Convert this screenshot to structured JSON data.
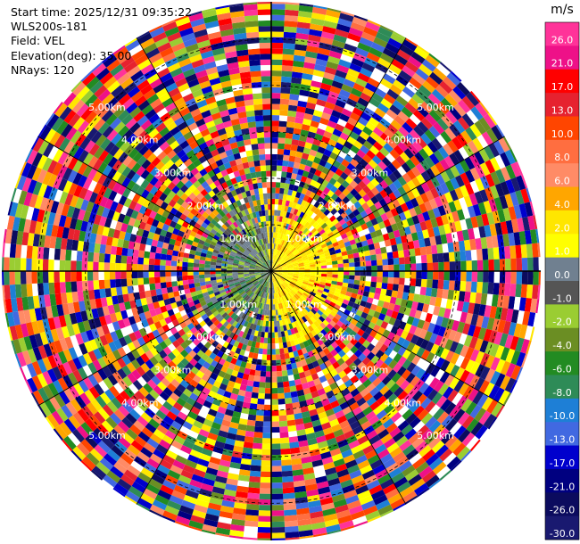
{
  "info": {
    "start_time": "Start time: 2025/12/31 09:35:22",
    "instrument": "WLS200s-181",
    "field": "Field: VEL",
    "elevation": "Elevation(deg): 35.00",
    "nrays": "NRays: 120"
  },
  "range_ring_labels": [
    "1.00km",
    "2.00km",
    "3.00km",
    "4.00km",
    "5.00km"
  ],
  "colorbar": {
    "unit": "m/s",
    "ticks": [
      "26.0",
      "21.0",
      "17.0",
      "13.0",
      "10.0",
      "8.0",
      "6.0",
      "4.0",
      "2.0",
      "1.0",
      "0.0",
      "-1.0",
      "-2.0",
      "-4.0",
      "-6.0",
      "-8.0",
      "-10.0",
      "-13.0",
      "-17.0",
      "-21.0",
      "-26.0",
      "-30.0"
    ],
    "colors": [
      "#ff3399",
      "#ee1188",
      "#ff0000",
      "#e6222f",
      "#ff4500",
      "#ff6e40",
      "#ff8b66",
      "#ffa600",
      "#ffe600",
      "#ffff00",
      "#708090",
      "#555555",
      "#9acd32",
      "#6b8e23",
      "#228b22",
      "#2e8b57",
      "#1e7fd6",
      "#4169e1",
      "#0000cd",
      "#000080",
      "#0b0b5e",
      "#191970"
    ]
  },
  "chart_data": {
    "type": "heatmap",
    "subtype": "ppi-polar",
    "field": "VEL",
    "units": "m/s",
    "nrays": 120,
    "max_range_km": 5.8,
    "range_rings_km": [
      1,
      2,
      3,
      4,
      5
    ],
    "value_range": [
      -30,
      30
    ],
    "spokes_deg": [
      0,
      30,
      60,
      90,
      120,
      150,
      180,
      210,
      240,
      270,
      300,
      330
    ],
    "pattern": "noisy random velocities at long range; near-field positive (yellow) east of centre, negative (green/grey) west of centre"
  }
}
